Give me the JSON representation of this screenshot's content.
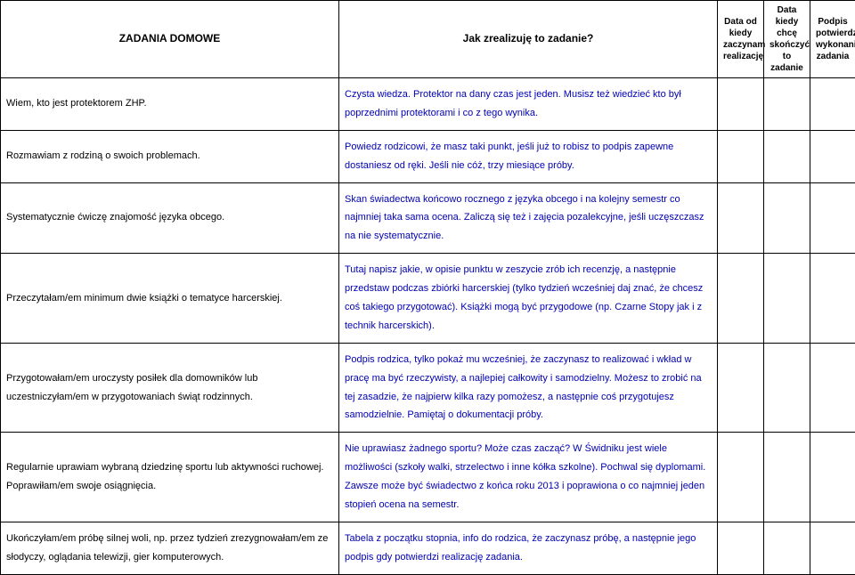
{
  "header": {
    "col1": "ZADANIA DOMOWE",
    "col2": "Jak zrealizuję to zadanie?",
    "col3": "Data od kiedy zaczynam realizację",
    "col4": "Data kiedy chcę skończyć to zadanie",
    "col5": "Podpis potwierdzający wykonanie zadania"
  },
  "rows": [
    {
      "task": "Wiem, kto jest protektorem ZHP.",
      "how": "Czysta wiedza. Protektor na dany czas jest jeden. Musisz też wiedzieć kto był poprzednimi protektorami i co z tego wynika."
    },
    {
      "task": "Rozmawiam z rodziną o swoich problemach.",
      "how": "Powiedz rodzicowi, że masz taki punkt, jeśli już to robisz to podpis zapewne dostaniesz od ręki. Jeśli nie cóż, trzy miesiące próby."
    },
    {
      "task": "Systematycznie ćwiczę znajomość języka obcego.",
      "how": "Skan świadectwa końcowo rocznego z języka obcego i na kolejny semestr co najmniej taka sama ocena. Zaliczą się też i zajęcia pozalekcyjne, jeśli uczęszczasz na nie systematycznie."
    },
    {
      "task": "Przeczytałam/em minimum dwie książki o tematyce harcerskiej.",
      "how": "Tutaj napisz jakie, w opisie punktu w zeszycie zrób ich recenzję, a następnie przedstaw podczas zbiórki harcerskiej (tylko tydzień wcześniej daj znać, że chcesz coś takiego przygotować). Książki mogą być przygodowe (np. Czarne Stopy jak i z technik harcerskich)."
    },
    {
      "task": "Przygotowałam/em uroczysty posiłek dla domowników lub uczestniczyłam/em w przygotowaniach świąt rodzinnych.",
      "how": "Podpis rodzica, tylko pokaż mu wcześniej, że zaczynasz to realizować i wkład w pracę ma być rzeczywisty, a najlepiej całkowity i samodzielny. Możesz to zrobić na tej zasadzie, że najpierw kilka razy pomożesz, a następnie coś przygotujesz samodzielnie. Pamiętaj o dokumentacji próby."
    },
    {
      "task": "Regularnie uprawiam wybraną dziedzinę sportu lub aktywności ruchowej. Poprawiłam/em swoje osiągnięcia.",
      "how": "Nie uprawiasz żadnego sportu? Może czas zacząć? W Świdniku jest wiele możliwości (szkoły walki, strzelectwo i inne kółka szkolne). Pochwal się dyplomami. Zawsze może być świadectwo z końca roku 2013 i poprawiona o co najmniej jeden stopień ocena na semestr."
    },
    {
      "task": "Ukończyłam/em próbę silnej woli, np. przez tydzień zrezygnowałam/em ze słodyczy, oglądania telewizji, gier komputerowych.",
      "how": "Tabela z początku stopnia, info do rodzica, że zaczynasz próbę, a następnie jego podpis gdy potwierdzi realizację zadania."
    }
  ]
}
